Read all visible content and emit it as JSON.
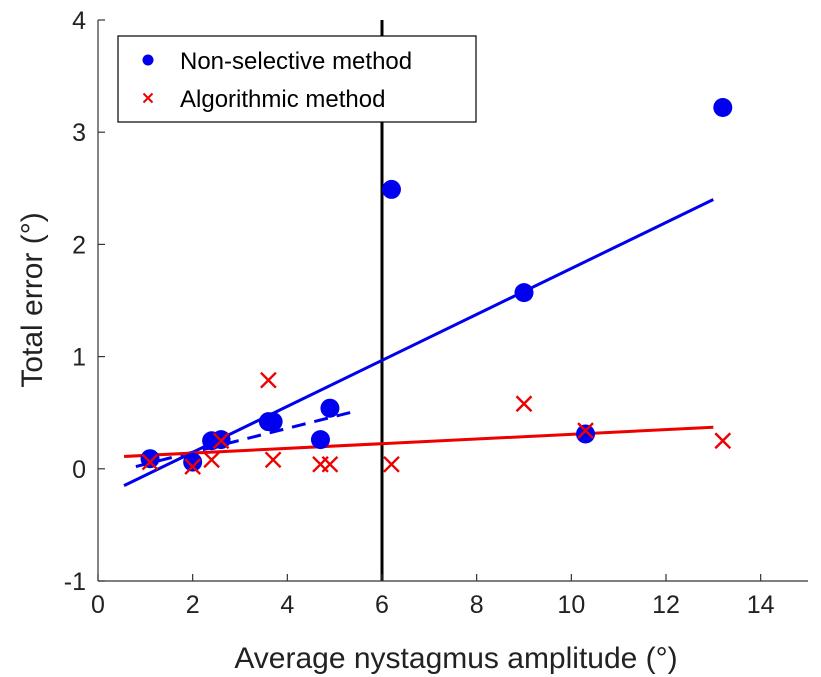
{
  "chart_data": {
    "type": "scatter",
    "xlabel": "Average nystagmus amplitude (°)",
    "ylabel": "Total error (°)",
    "xlim": [
      0,
      15
    ],
    "ylim": [
      -1,
      4
    ],
    "xticks": [
      0,
      2,
      4,
      6,
      8,
      10,
      12,
      14
    ],
    "yticks": [
      -1,
      0,
      1,
      2,
      3,
      4
    ],
    "grid": false,
    "legend_position": "top-left",
    "series": [
      {
        "name": "Non-selective method",
        "marker": "circle",
        "color": "#0000ee",
        "points": [
          [
            1.1,
            0.09
          ],
          [
            2.0,
            0.06
          ],
          [
            2.4,
            0.25
          ],
          [
            2.6,
            0.26
          ],
          [
            3.6,
            0.42
          ],
          [
            3.7,
            0.42
          ],
          [
            4.7,
            0.26
          ],
          [
            4.9,
            0.54
          ],
          [
            6.2,
            2.49
          ],
          [
            9.0,
            1.57
          ],
          [
            10.3,
            0.31
          ],
          [
            13.2,
            3.22
          ]
        ]
      },
      {
        "name": "Algorithmic method",
        "marker": "x",
        "color": "#ee0000",
        "points": [
          [
            1.1,
            0.06
          ],
          [
            2.0,
            0.02
          ],
          [
            2.4,
            0.08
          ],
          [
            2.6,
            0.25
          ],
          [
            3.6,
            0.79
          ],
          [
            3.7,
            0.08
          ],
          [
            4.7,
            0.04
          ],
          [
            4.9,
            0.04
          ],
          [
            6.2,
            0.04
          ],
          [
            9.0,
            0.58
          ],
          [
            10.3,
            0.34
          ],
          [
            13.2,
            0.25
          ]
        ]
      }
    ],
    "fit_lines": [
      {
        "series": "Non-selective method",
        "style": "solid",
        "color": "#0000ee",
        "x": [
          0.55,
          13.0
        ],
        "y": [
          -0.15,
          2.4
        ]
      },
      {
        "series": "Non-selective method",
        "style": "dashed",
        "color": "#0000ee",
        "x": [
          0.8,
          5.5
        ],
        "y": [
          0.02,
          0.52
        ]
      },
      {
        "series": "Algorithmic method",
        "style": "solid",
        "color": "#ee0000",
        "x": [
          0.55,
          13.0
        ],
        "y": [
          0.11,
          0.37
        ]
      }
    ],
    "vertical_line": {
      "x": 6,
      "color": "#000000"
    }
  }
}
